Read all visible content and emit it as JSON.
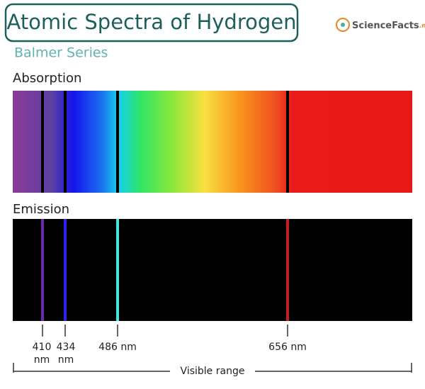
{
  "header": {
    "title": "Atomic Spectra of Hydrogen",
    "subtitle": "Balmer Series",
    "logo": "ScienceFacts",
    "logo_suffix": ".net"
  },
  "absorption": {
    "label": "Absorption"
  },
  "emission": {
    "label": "Emission"
  },
  "lines": [
    {
      "label": [
        "410",
        "nm"
      ]
    },
    {
      "label": [
        "434",
        "nm"
      ]
    },
    {
      "label": [
        "486 nm"
      ]
    },
    {
      "label": [
        "656 nm"
      ]
    }
  ],
  "range": {
    "label": "Visible range"
  }
}
